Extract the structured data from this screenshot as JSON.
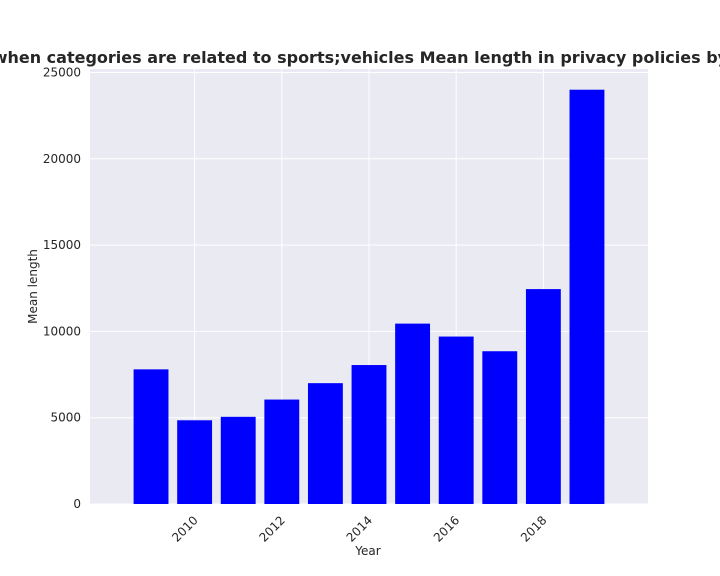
{
  "chart_data": {
    "type": "bar",
    "title": "when categories are related to sports;vehicles Mean length in privacy policies by Year",
    "xlabel": "Year",
    "ylabel": "Mean length",
    "x": [
      2009,
      2010,
      2011,
      2012,
      2013,
      2014,
      2015,
      2016,
      2017,
      2018,
      2019
    ],
    "values": [
      7800,
      4850,
      5050,
      6050,
      7000,
      8050,
      10450,
      9700,
      8850,
      12450,
      24000
    ],
    "xlim": [
      2007.6,
      2020.4
    ],
    "ylim": [
      0,
      25200
    ],
    "x_ticks": [
      2010,
      2012,
      2014,
      2016,
      2018
    ],
    "y_ticks": [
      0,
      5000,
      10000,
      15000,
      20000,
      25000
    ],
    "grid": true,
    "colors": {
      "bar": "#0000ff",
      "plot_background": "#eaeaf2",
      "grid": "#ffffff",
      "text": "#262626"
    }
  }
}
